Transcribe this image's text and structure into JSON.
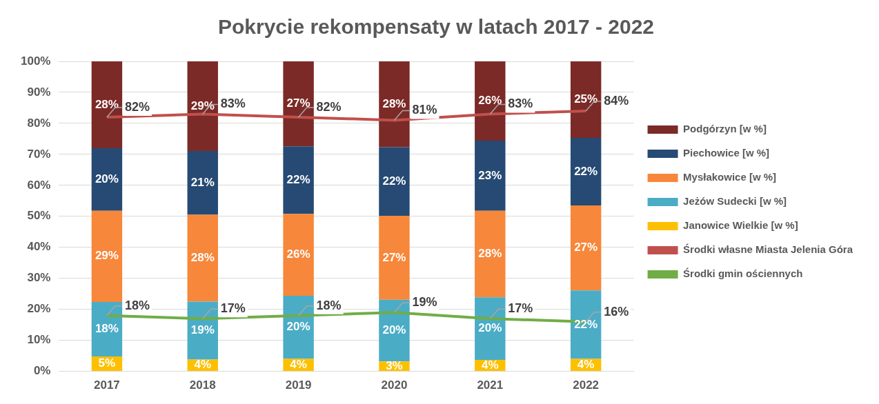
{
  "chart_data": {
    "type": "bar",
    "title": "Pokrycie rekompensaty w latach 2017 - 2022",
    "categories": [
      "2017",
      "2018",
      "2019",
      "2020",
      "2021",
      "2022"
    ],
    "stacked": true,
    "ylim": [
      0,
      100
    ],
    "yticks": [
      {
        "value": 0,
        "label": "0%"
      },
      {
        "value": 10,
        "label": "10%"
      },
      {
        "value": 20,
        "label": "20%"
      },
      {
        "value": 30,
        "label": "30%"
      },
      {
        "value": 40,
        "label": "40%"
      },
      {
        "value": 50,
        "label": "50%"
      },
      {
        "value": 60,
        "label": "60%"
      },
      {
        "value": 70,
        "label": "70%"
      },
      {
        "value": 80,
        "label": "80%"
      },
      {
        "value": 90,
        "label": "90%"
      },
      {
        "value": 100,
        "label": "100%"
      }
    ],
    "grid": "y",
    "legend": "right",
    "marker": "none",
    "line_style": "solid",
    "series": [
      {
        "name": "Janowice Wielkie [w %]",
        "color": "#fdc000",
        "values": [
          4.8,
          3.8,
          4.0,
          3.2,
          3.7,
          4.0
        ],
        "value_labels": [
          "5%",
          "4%",
          "4%",
          "3%",
          "4%",
          "4%"
        ]
      },
      {
        "name": "Jeżów Sudecki [w %]",
        "color": "#4bacc6",
        "values": [
          17.6,
          18.7,
          20.4,
          19.9,
          20.2,
          22.1
        ],
        "value_labels": [
          "18%",
          "19%",
          "20%",
          "20%",
          "20%",
          "22%"
        ]
      },
      {
        "name": "Mysłakowice [w %]",
        "color": "#f7873a",
        "values": [
          29.4,
          28.0,
          26.4,
          27.1,
          27.9,
          27.4
        ],
        "value_labels": [
          "29%",
          "28%",
          "26%",
          "27%",
          "28%",
          "27%"
        ]
      },
      {
        "name": "Piechowice [w %]",
        "color": "#264a73",
        "values": [
          20.2,
          20.6,
          21.8,
          22.1,
          22.6,
          21.8
        ],
        "value_labels": [
          "20%",
          "21%",
          "22%",
          "22%",
          "23%",
          "22%"
        ]
      },
      {
        "name": "Podgórzyn [w %]",
        "color": "#7b2a27",
        "values": [
          28.0,
          28.9,
          27.4,
          27.7,
          25.6,
          24.7
        ],
        "value_labels": [
          "28%",
          "29%",
          "27%",
          "28%",
          "26%",
          "25%"
        ]
      },
      {
        "name": "Środki własne Miasta Jelenia Góra",
        "type": "line",
        "color": "#c0504d",
        "values": [
          82,
          83,
          82,
          81,
          83,
          84
        ],
        "value_labels": [
          "82%",
          "83%",
          "82%",
          "81%",
          "83%",
          "84%"
        ]
      },
      {
        "name": "Środki gmin ościennych",
        "type": "line",
        "color": "#70ad47",
        "values": [
          18,
          17,
          18,
          19,
          17,
          16
        ],
        "value_labels": [
          "18%",
          "17%",
          "18%",
          "19%",
          "17%",
          "16%"
        ]
      }
    ]
  }
}
